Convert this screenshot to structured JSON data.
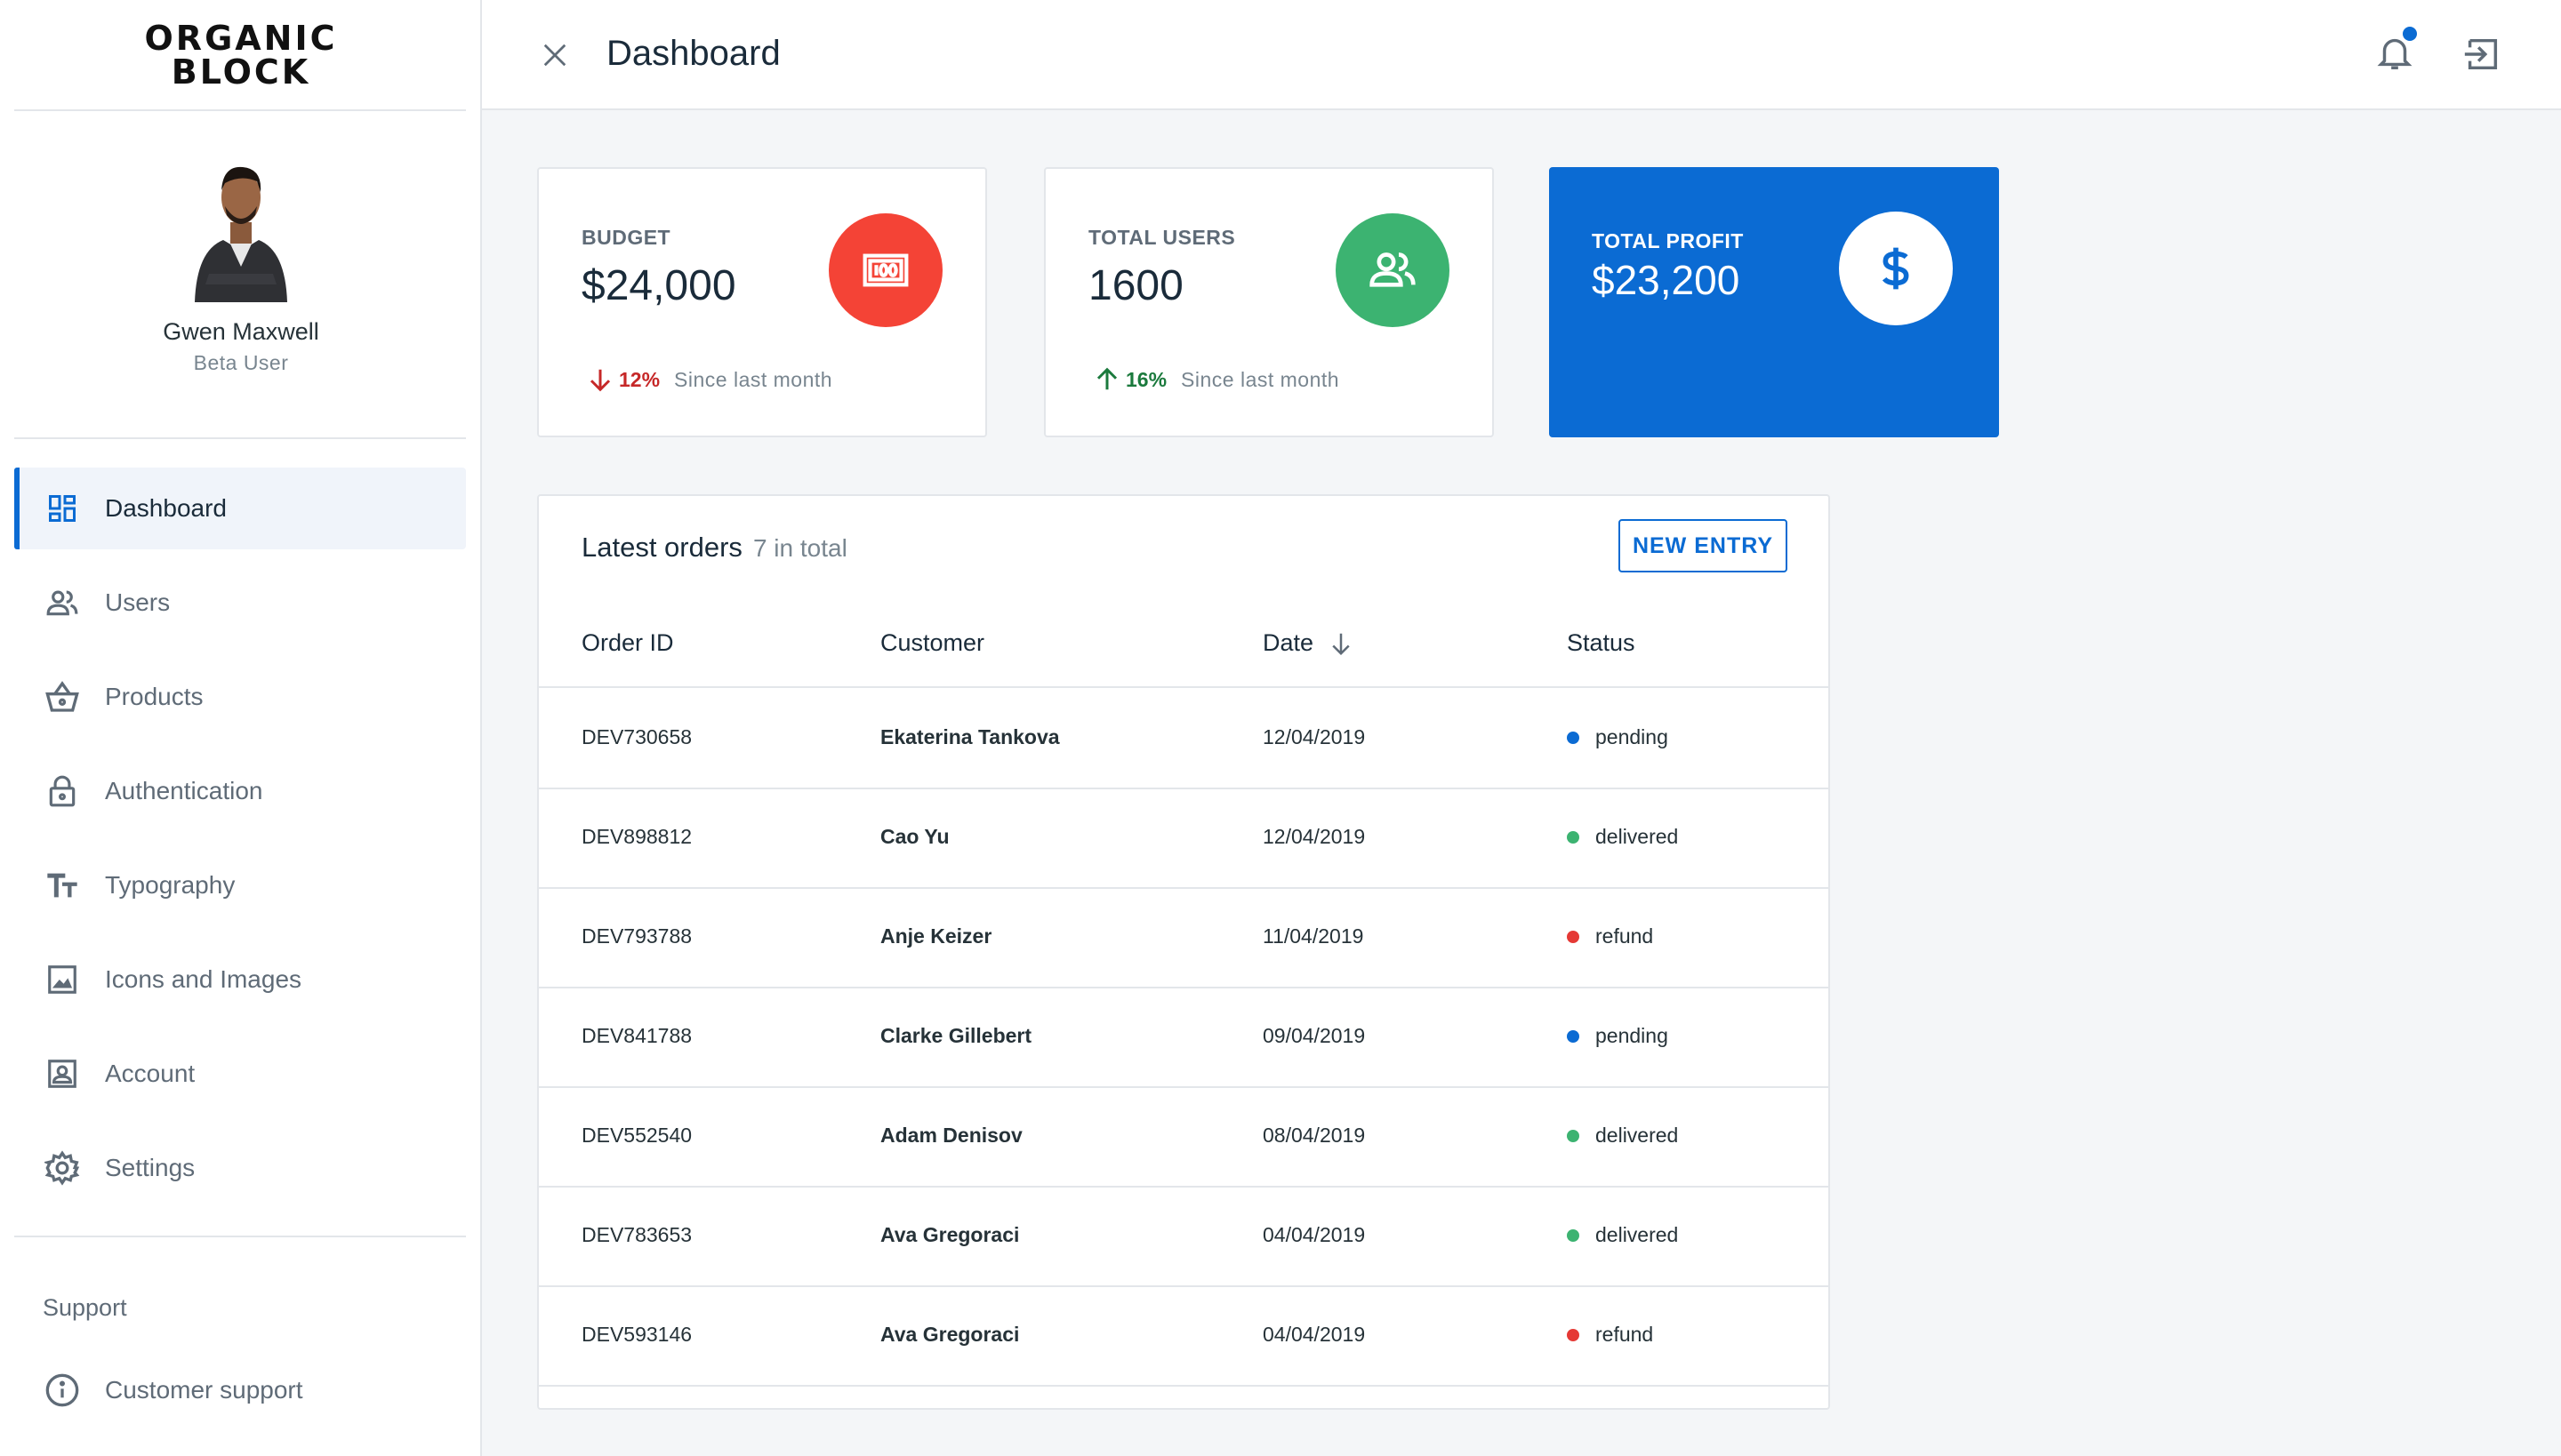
{
  "brand": {
    "line1": "ORGANIC",
    "line2": "BLOCK"
  },
  "profile": {
    "name": "Gwen Maxwell",
    "role": "Beta User"
  },
  "sidebar": {
    "items": [
      {
        "label": "Dashboard",
        "icon": "dashboard-icon",
        "active": true
      },
      {
        "label": "Users",
        "icon": "users-icon"
      },
      {
        "label": "Products",
        "icon": "basket-icon"
      },
      {
        "label": "Authentication",
        "icon": "lock-icon"
      },
      {
        "label": "Typography",
        "icon": "text-icon"
      },
      {
        "label": "Icons and Images",
        "icon": "image-icon"
      },
      {
        "label": "Account",
        "icon": "account-icon"
      },
      {
        "label": "Settings",
        "icon": "gear-icon"
      }
    ],
    "support_title": "Support",
    "support_item": {
      "label": "Customer support",
      "icon": "info-icon"
    }
  },
  "header": {
    "title": "Dashboard",
    "icons": [
      "close-icon",
      "bell-icon",
      "exit-icon"
    ]
  },
  "stats": {
    "budget": {
      "label": "BUDGET",
      "value": "$24,000",
      "change": "12%",
      "since": "Since last month",
      "direction": "down",
      "color": "#e53935",
      "icon": "money-icon"
    },
    "users": {
      "label": "TOTAL USERS",
      "value": "1600",
      "change": "16%",
      "since": "Since last month",
      "direction": "up",
      "color": "#3cb371",
      "icon": "group-icon"
    },
    "profit": {
      "label": "TOTAL PROFIT",
      "value": "$23,200",
      "color": "#0b6bd3",
      "icon": "dollar-icon"
    }
  },
  "orders": {
    "title": "Latest orders",
    "count": "7 in total",
    "new_entry": "NEW ENTRY",
    "columns": [
      "Order ID",
      "Customer",
      "Date",
      "Status"
    ],
    "rows": [
      {
        "id": "DEV730658",
        "customer": "Ekaterina Tankova",
        "date": "12/04/2019",
        "status": "pending"
      },
      {
        "id": "DEV898812",
        "customer": "Cao Yu",
        "date": "12/04/2019",
        "status": "delivered"
      },
      {
        "id": "DEV793788",
        "customer": "Anje Keizer",
        "date": "11/04/2019",
        "status": "refund"
      },
      {
        "id": "DEV841788",
        "customer": "Clarke Gillebert",
        "date": "09/04/2019",
        "status": "pending"
      },
      {
        "id": "DEV552540",
        "customer": "Adam Denisov",
        "date": "08/04/2019",
        "status": "delivered"
      },
      {
        "id": "DEV783653",
        "customer": "Ava Gregoraci",
        "date": "04/04/2019",
        "status": "delivered"
      },
      {
        "id": "DEV593146",
        "customer": "Ava Gregoraci",
        "date": "04/04/2019",
        "status": "refund"
      }
    ]
  },
  "status_colors": {
    "pending": "#0b6bd3",
    "delivered": "#3cb371",
    "refund": "#e53935"
  }
}
